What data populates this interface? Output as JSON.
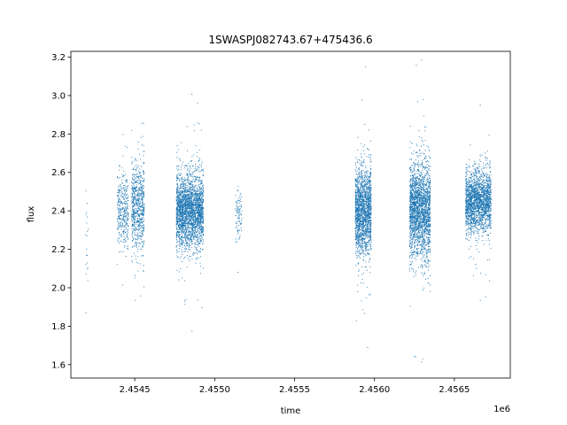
{
  "chart_data": {
    "type": "scatter",
    "title": "1SWASPJ082743.67+475436.6",
    "xlabel": "time",
    "ylabel": "flux",
    "x_offset_label": "1e6",
    "xlim": [
      2.4541,
      2.45685
    ],
    "ylim": [
      1.53,
      3.23
    ],
    "x_ticks": [
      2.4545,
      2.455,
      2.4555,
      2.456,
      2.4565
    ],
    "x_tick_labels": [
      "2.4545",
      "2.4550",
      "2.4555",
      "2.4560",
      "2.4565"
    ],
    "y_ticks": [
      1.6,
      1.8,
      2.0,
      2.2,
      2.4,
      2.6,
      2.8,
      3.0,
      3.2
    ],
    "y_tick_labels": [
      "1.6",
      "1.8",
      "2.0",
      "2.2",
      "2.4",
      "2.6",
      "2.8",
      "3.0",
      "3.2"
    ],
    "grid": false,
    "marker_color": "#1f77b4",
    "series": [
      {
        "values_description_segments": [
          {
            "x_range": [
              2.45419,
              2.45421
            ],
            "y_center": 2.3,
            "y_spread": 0.3,
            "count": 20
          },
          {
            "x_range": [
              2.45439,
              2.45446
            ],
            "y_center": 2.4,
            "y_spread": 0.16,
            "count": 350
          },
          {
            "x_range": [
              2.45448,
              2.45456
            ],
            "y_center": 2.42,
            "y_spread": 0.22,
            "count": 700
          },
          {
            "x_range": [
              2.45476,
              2.45493
            ],
            "y_center": 2.4,
            "y_spread": 0.17,
            "count": 2600
          },
          {
            "x_range": [
              2.45513,
              2.45517
            ],
            "y_center": 2.38,
            "y_spread": 0.12,
            "count": 90
          },
          {
            "x_range": [
              2.45588,
              2.45598
            ],
            "y_center": 2.4,
            "y_spread": 0.2,
            "count": 1800
          },
          {
            "x_range": [
              2.45622,
              2.45635
            ],
            "y_center": 2.4,
            "y_spread": 0.22,
            "count": 2200
          },
          {
            "x_range": [
              2.45657,
              2.45673
            ],
            "y_center": 2.45,
            "y_spread": 0.14,
            "count": 2000
          }
        ]
      }
    ]
  }
}
